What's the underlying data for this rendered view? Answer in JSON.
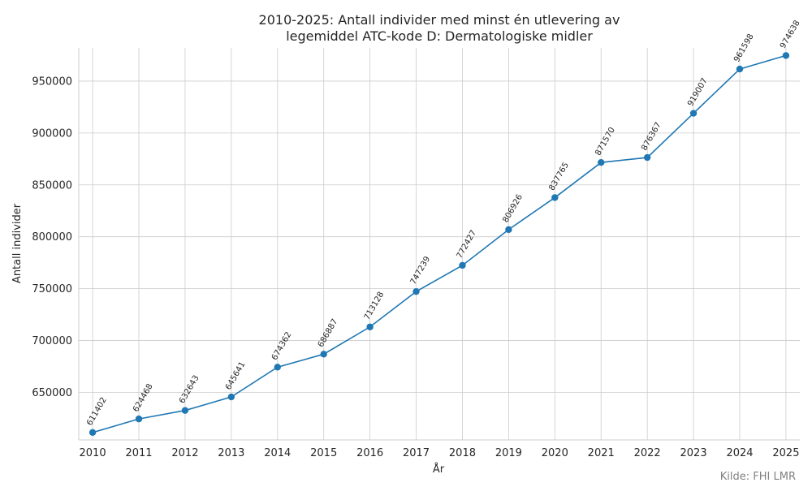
{
  "chart_data": {
    "type": "line",
    "title_line1": "2010-2025: Antall individer med minst én utlevering av",
    "title_line2": "legemiddel ATC-kode D: Dermatologiske midler",
    "xlabel": "År",
    "ylabel": "Antall individer",
    "source": "Kilde: FHI LMR",
    "x": [
      2010,
      2011,
      2012,
      2013,
      2014,
      2015,
      2016,
      2017,
      2018,
      2019,
      2020,
      2021,
      2022,
      2023,
      2024,
      2025
    ],
    "values": [
      611402,
      624468,
      632643,
      645641,
      674362,
      686887,
      713128,
      747239,
      772427,
      806926,
      837765,
      871570,
      876367,
      919007,
      961598,
      974638
    ],
    "yticks": [
      650000,
      700000,
      750000,
      800000,
      850000,
      900000,
      950000
    ],
    "ylim": [
      604235,
      982000
    ],
    "xlim": [
      2009.7,
      2025.3
    ],
    "line_color": "#1f77b4",
    "grid": true
  }
}
